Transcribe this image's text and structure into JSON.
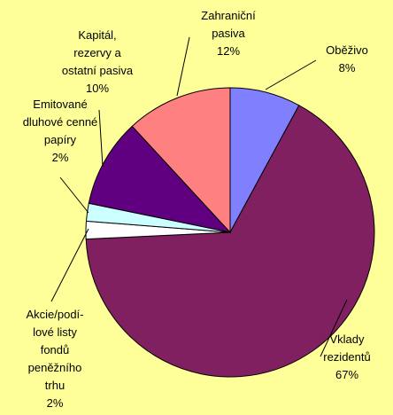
{
  "chart_data": {
    "type": "pie",
    "categories": [
      "Oběživo",
      "Vklady\nrezidentů",
      "Akcie/podí-\nlové listy\nfondů\npeněžního\ntrhu",
      "Emitované\ndluhové cenné\npapíry",
      "Kapitál,\nrezervy a\nostatní pasiva",
      "Zahraniční\npasiva"
    ],
    "values": [
      8,
      67,
      2,
      2,
      10,
      12
    ],
    "value_labels": [
      "8%",
      "67%",
      "2%",
      "2%",
      "10%",
      "12%"
    ],
    "colors": [
      "#8080ff",
      "#802060",
      "#ffffff",
      "#ccffff",
      "#600080",
      "#ff8080"
    ]
  }
}
